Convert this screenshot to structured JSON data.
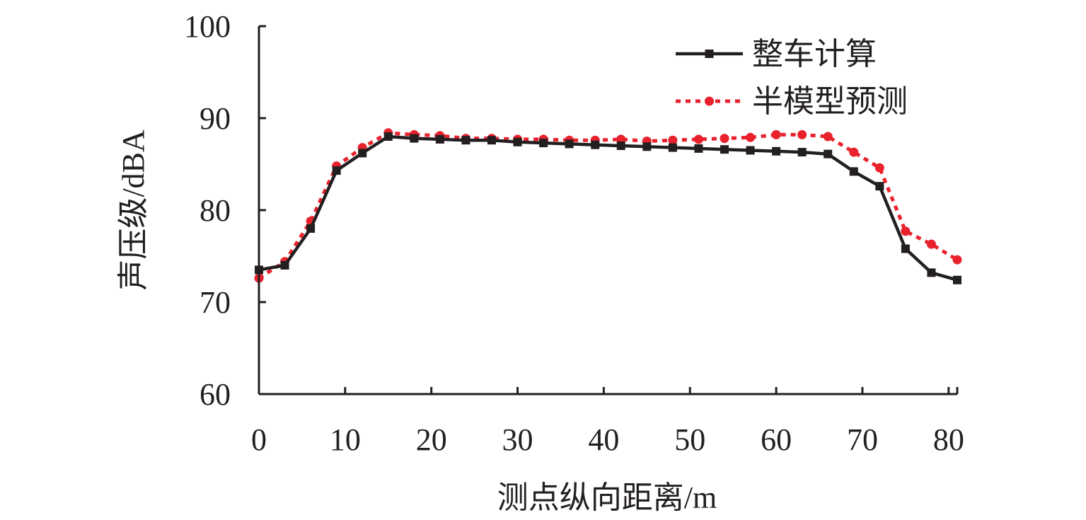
{
  "chart_data": {
    "type": "line",
    "title": "",
    "xlabel": "测点纵向距离/m",
    "ylabel": "声压级/dBA",
    "xlim": [
      0,
      81
    ],
    "ylim": [
      60,
      100
    ],
    "x_ticks": [
      0,
      10,
      20,
      30,
      40,
      50,
      60,
      70,
      80
    ],
    "y_ticks": [
      60,
      70,
      80,
      90,
      100
    ],
    "grid": false,
    "legend_position": "top-right",
    "series": [
      {
        "name": "整车计算",
        "color": "#231f20",
        "line_style": "solid",
        "marker": "square",
        "x": [
          0,
          3,
          6,
          9,
          12,
          15,
          18,
          21,
          24,
          27,
          30,
          33,
          36,
          39,
          42,
          45,
          48,
          51,
          54,
          57,
          60,
          63,
          66,
          69,
          72,
          75,
          78,
          81
        ],
        "y": [
          73.5,
          74.0,
          78.0,
          84.3,
          86.2,
          88.0,
          87.8,
          87.7,
          87.6,
          87.6,
          87.4,
          87.3,
          87.2,
          87.1,
          87.0,
          86.9,
          86.8,
          86.7,
          86.6,
          86.5,
          86.4,
          86.3,
          86.1,
          84.2,
          82.6,
          75.8,
          73.2,
          72.4
        ]
      },
      {
        "name": "半模型预测",
        "color": "#e8212c",
        "line_style": "dotted",
        "marker": "circle",
        "x": [
          0,
          3,
          6,
          9,
          12,
          15,
          18,
          21,
          24,
          27,
          30,
          33,
          36,
          39,
          42,
          45,
          48,
          51,
          54,
          57,
          60,
          63,
          66,
          69,
          72,
          75,
          78,
          81
        ],
        "y": [
          72.6,
          74.4,
          78.8,
          84.8,
          86.8,
          88.4,
          88.2,
          88.1,
          87.8,
          87.8,
          87.7,
          87.7,
          87.6,
          87.6,
          87.7,
          87.5,
          87.6,
          87.7,
          87.8,
          87.9,
          88.2,
          88.2,
          88.0,
          86.3,
          84.6,
          77.7,
          76.3,
          74.6
        ]
      }
    ]
  }
}
